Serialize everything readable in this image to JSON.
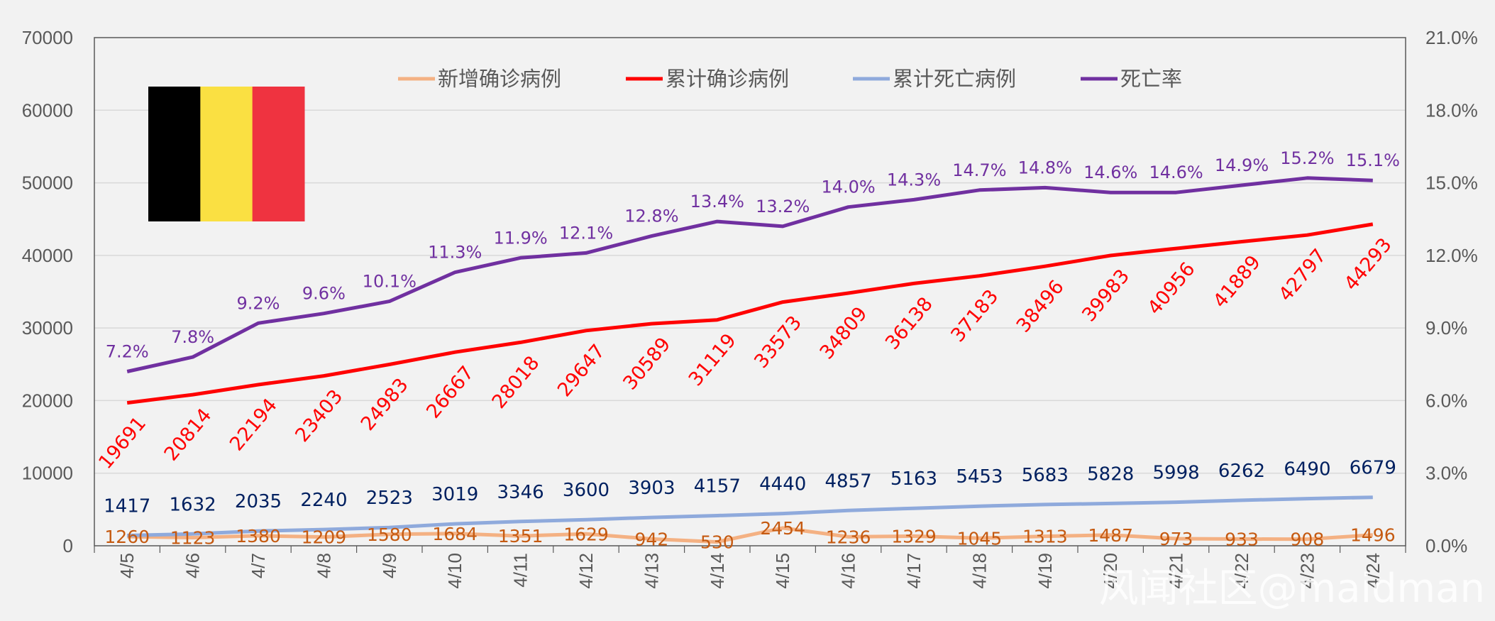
{
  "chart_data": {
    "type": "line",
    "categories": [
      "4/5",
      "4/6",
      "4/7",
      "4/8",
      "4/9",
      "4/10",
      "4/11",
      "4/12",
      "4/13",
      "4/14",
      "4/15",
      "4/16",
      "4/17",
      "4/18",
      "4/19",
      "4/20",
      "4/21",
      "4/22",
      "4/23",
      "4/24"
    ],
    "y_left": {
      "ylim": [
        0,
        70000
      ],
      "ticks": [
        "0",
        "10000",
        "20000",
        "30000",
        "40000",
        "50000",
        "60000",
        "70000"
      ]
    },
    "y_right": {
      "ylim": [
        0,
        21
      ],
      "ticks": [
        "0.0%",
        "3.0%",
        "6.0%",
        "9.0%",
        "12.0%",
        "15.0%",
        "18.0%",
        "21.0%"
      ]
    },
    "grid": "horizontal",
    "legend_position": "top",
    "series": [
      {
        "name": "新增确诊病例",
        "axis": "left",
        "color": "#f4b183",
        "label_color": "#c55a11",
        "values": [
          1260,
          1123,
          1380,
          1209,
          1580,
          1684,
          1351,
          1629,
          942,
          530,
          2454,
          1236,
          1329,
          1045,
          1313,
          1487,
          973,
          933,
          908,
          1496
        ],
        "labels": [
          "1260",
          "1123",
          "1380",
          "1209",
          "1580",
          "1684",
          "1351",
          "1629",
          "942",
          "530",
          "2454",
          "1236",
          "1329",
          "1045",
          "1313",
          "1487",
          "973",
          "933",
          "908",
          "1496"
        ]
      },
      {
        "name": "累计确诊病例",
        "axis": "left",
        "color": "#ff0000",
        "label_color": "#ff0000",
        "values": [
          19691,
          20814,
          22194,
          23403,
          24983,
          26667,
          28018,
          29647,
          30589,
          31119,
          33573,
          34809,
          36138,
          37183,
          38496,
          39983,
          40956,
          41889,
          42797,
          44293
        ],
        "labels": [
          "19691",
          "20814",
          "22194",
          "23403",
          "24983",
          "26667",
          "28018",
          "29647",
          "30589",
          "31119",
          "33573",
          "34809",
          "36138",
          "37183",
          "38496",
          "39983",
          "40956",
          "41889",
          "42797",
          "44293"
        ]
      },
      {
        "name": "累计死亡病例",
        "axis": "left",
        "color": "#8faadc",
        "label_color": "#002060",
        "values": [
          1417,
          1632,
          2035,
          2240,
          2523,
          3019,
          3346,
          3600,
          3903,
          4157,
          4440,
          4857,
          5163,
          5453,
          5683,
          5828,
          5998,
          6262,
          6490,
          6679
        ],
        "labels": [
          "1417",
          "1632",
          "2035",
          "2240",
          "2523",
          "3019",
          "3346",
          "3600",
          "3903",
          "4157",
          "4440",
          "4857",
          "5163",
          "5453",
          "5683",
          "5828",
          "5998",
          "6262",
          "6490",
          "6679"
        ]
      },
      {
        "name": "死亡率",
        "axis": "right",
        "color": "#7030a0",
        "label_color": "#7030a0",
        "values": [
          7.2,
          7.8,
          9.2,
          9.6,
          10.1,
          11.3,
          11.9,
          12.1,
          12.8,
          13.4,
          13.2,
          14.0,
          14.3,
          14.7,
          14.8,
          14.6,
          14.6,
          14.9,
          15.2,
          15.1
        ],
        "labels": [
          "7.2%",
          "7.8%",
          "9.2%",
          "9.6%",
          "10.1%",
          "11.3%",
          "11.9%",
          "12.1%",
          "12.8%",
          "13.4%",
          "13.2%",
          "14.0%",
          "14.3%",
          "14.7%",
          "14.8%",
          "14.6%",
          "14.6%",
          "14.9%",
          "15.2%",
          "15.1%"
        ]
      }
    ],
    "flag_colors": [
      "#000000",
      "#fae042",
      "#ef3340"
    ]
  },
  "watermark": "风闻社区@maidman"
}
